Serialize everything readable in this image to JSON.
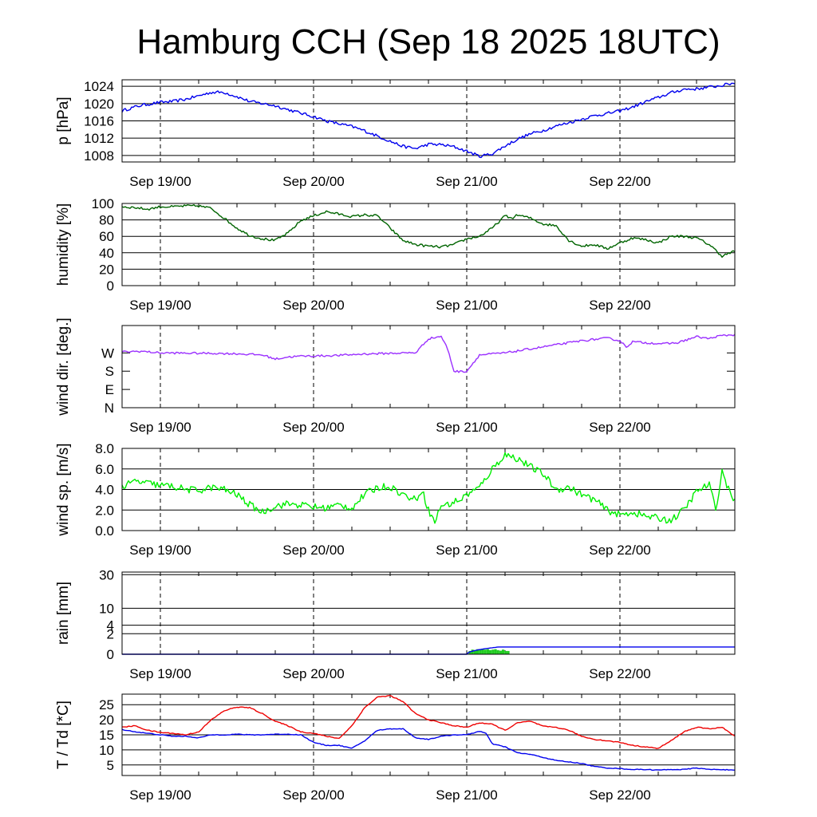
{
  "title": "Hamburg CCH (Sep 18 2025 18UTC)",
  "colors": {
    "pressure": "#0000ee",
    "humidity": "#006400",
    "wind_dir": "#9b30ff",
    "wind_speed": "#00ee00",
    "rain_total": "#0000ee",
    "rain_rate": "#22cc22",
    "temperature": "#ee0000",
    "dewpoint": "#0000ee"
  },
  "chart_data": [
    {
      "type": "line",
      "ylabel": "p [hPa]",
      "xlim": [
        -6,
        90
      ],
      "ylim": [
        1006.5,
        1025.5
      ],
      "x_ticks": [
        0,
        24,
        48,
        72
      ],
      "x_tick_labels": [
        "Sep 19/00",
        "Sep 20/00",
        "Sep 21/00",
        "Sep 22/00"
      ],
      "y_ticks": [
        1008,
        1012,
        1016,
        1020,
        1024
      ],
      "y_tick_labels": [
        "1008",
        "1012",
        "1016",
        "1020",
        "1024"
      ],
      "grid": true,
      "series": [
        {
          "x": [
            -6,
            -5,
            -3,
            0,
            2,
            4,
            6,
            8,
            10,
            12,
            14,
            16,
            18,
            20,
            22,
            24,
            26,
            28,
            30,
            32,
            34,
            36,
            38,
            40,
            42,
            44,
            46,
            48,
            50,
            52,
            54,
            56,
            58,
            60,
            62,
            64,
            66,
            68,
            70,
            72,
            74,
            76,
            78,
            80,
            82,
            84,
            86,
            88,
            90
          ],
          "y": [
            1018.3,
            1018.8,
            1019.6,
            1020.3,
            1020.5,
            1021.0,
            1021.8,
            1022.6,
            1022.6,
            1021.6,
            1020.5,
            1020.0,
            1019.5,
            1018.6,
            1017.8,
            1017.0,
            1016.0,
            1015.3,
            1014.7,
            1013.7,
            1012.5,
            1011.3,
            1010.1,
            1009.6,
            1010.6,
            1010.5,
            1010.0,
            1009.0,
            1007.8,
            1008.4,
            1010.2,
            1011.8,
            1013.0,
            1013.8,
            1014.8,
            1015.6,
            1016.4,
            1017.2,
            1017.7,
            1018.3,
            1019.2,
            1020.4,
            1021.4,
            1022.5,
            1023.3,
            1023.4,
            1023.8,
            1024.2,
            1024.8
          ],
          "jitter": 0.35
        }
      ]
    },
    {
      "type": "line",
      "ylabel": "humidity [%]",
      "xlim": [
        -6,
        90
      ],
      "ylim": [
        0,
        100
      ],
      "x_ticks": [
        0,
        24,
        48,
        72
      ],
      "x_tick_labels": [
        "Sep 19/00",
        "Sep 20/00",
        "Sep 21/00",
        "Sep 22/00"
      ],
      "y_ticks": [
        0,
        20,
        40,
        60,
        80,
        100
      ],
      "y_tick_labels": [
        "0",
        "20",
        "40",
        "60",
        "80",
        "100"
      ],
      "grid": true,
      "series": [
        {
          "x": [
            -6,
            -4,
            -2,
            0,
            2,
            4,
            6,
            8,
            10,
            12,
            14,
            16,
            18,
            20,
            22,
            24,
            26,
            28,
            30,
            32,
            34,
            36,
            38,
            40,
            42,
            44,
            46,
            48,
            50,
            52,
            54,
            55,
            56,
            58,
            60,
            62,
            64,
            66,
            68,
            70,
            72,
            74,
            76,
            78,
            80,
            82,
            84,
            86,
            88,
            90
          ],
          "y": [
            96,
            95,
            93,
            96,
            96,
            97,
            97,
            94,
            82,
            70,
            61,
            57,
            55,
            64,
            79,
            85,
            90,
            87,
            84,
            86,
            85,
            70,
            55,
            50,
            48,
            47,
            50,
            57,
            60,
            70,
            85,
            82,
            86,
            82,
            75,
            73,
            55,
            48,
            50,
            45,
            52,
            58,
            56,
            52,
            60,
            60,
            58,
            50,
            36,
            42
          ],
          "jitter": 1.5
        }
      ]
    },
    {
      "type": "line",
      "ylabel": "wind dir. [deg.]",
      "xlim": [
        -6,
        90
      ],
      "ylim": [
        0,
        405
      ],
      "x_ticks": [
        0,
        24,
        48,
        72
      ],
      "x_tick_labels": [
        "Sep 19/00",
        "Sep 20/00",
        "Sep 21/00",
        "Sep 22/00"
      ],
      "y_ticks": [
        0,
        90,
        180,
        270
      ],
      "y_tick_labels": [
        "N",
        "E",
        "S",
        "W"
      ],
      "grid": false,
      "series": [
        {
          "x": [
            -6,
            -3,
            0,
            4,
            8,
            12,
            16,
            18,
            20,
            22,
            24,
            28,
            32,
            36,
            40,
            42,
            44,
            45,
            46,
            47,
            48,
            50,
            52,
            54,
            58,
            62,
            66,
            70,
            72,
            73,
            74,
            76,
            79,
            81,
            84,
            86,
            87,
            88,
            90
          ],
          "y": [
            275,
            278,
            270,
            269,
            268,
            266,
            260,
            240,
            250,
            254,
            255,
            258,
            265,
            268,
            271,
            340,
            352,
            290,
            180,
            178,
            180,
            260,
            265,
            270,
            290,
            310,
            330,
            343,
            330,
            300,
            325,
            320,
            315,
            320,
            350,
            340,
            350,
            355,
            360
          ],
          "jitter": 5
        }
      ]
    },
    {
      "type": "line",
      "ylabel": "wind sp. [m/s]",
      "xlim": [
        -6,
        90
      ],
      "ylim": [
        0,
        8
      ],
      "x_ticks": [
        0,
        24,
        48,
        72
      ],
      "x_tick_labels": [
        "Sep 19/00",
        "Sep 20/00",
        "Sep 21/00",
        "Sep 22/00"
      ],
      "y_ticks": [
        0,
        2,
        4,
        6,
        8
      ],
      "y_tick_labels": [
        "0.0",
        "2.0",
        "4.0",
        "6.0",
        "8.0"
      ],
      "grid": true,
      "series": [
        {
          "x": [
            -6,
            -4,
            -2,
            0,
            2,
            4,
            6,
            8,
            10,
            12,
            14,
            16,
            18,
            20,
            22,
            24,
            26,
            28,
            30,
            32,
            34,
            36,
            38,
            40,
            41,
            42,
            43,
            44,
            45,
            46,
            47,
            48,
            50,
            52,
            54,
            56,
            58,
            60,
            62,
            64,
            66,
            68,
            70,
            72,
            74,
            76,
            78,
            80,
            82,
            84,
            86,
            87,
            88,
            89,
            90
          ],
          "y": [
            4.2,
            4.8,
            4.6,
            4.4,
            4.3,
            4.0,
            3.9,
            4.2,
            4.0,
            3.5,
            2.5,
            1.8,
            2.4,
            2.6,
            2.5,
            2.3,
            2.2,
            2.5,
            2.2,
            3.5,
            4.2,
            4.3,
            3.5,
            3.0,
            4.0,
            2.0,
            0.8,
            2.5,
            2.5,
            2.8,
            3.0,
            3.5,
            4.2,
            6.0,
            7.4,
            7.0,
            6.2,
            5.5,
            4.0,
            4.2,
            3.5,
            3.0,
            2.0,
            1.5,
            1.8,
            1.4,
            1.2,
            1.0,
            2.0,
            3.8,
            4.5,
            2.0,
            5.8,
            4.0,
            3.0
          ],
          "jitter": 0.35
        }
      ]
    },
    {
      "type": "line",
      "ylabel": "rain [mm]",
      "xlim": [
        -6,
        90
      ],
      "ylim": [
        0,
        32
      ],
      "scale": "sqrt",
      "x_ticks": [
        0,
        24,
        48,
        72
      ],
      "x_tick_labels": [
        "Sep 19/00",
        "Sep 20/00",
        "Sep 21/00",
        "Sep 22/00"
      ],
      "y_ticks": [
        0,
        2,
        4,
        10,
        30
      ],
      "y_tick_labels": [
        "0",
        "2",
        "4",
        "10",
        "30"
      ],
      "grid": true,
      "series": [
        {
          "x": [
            -6,
            48,
            49,
            50,
            51,
            52,
            53,
            90
          ],
          "y": [
            0,
            0,
            0.05,
            0.1,
            0.15,
            0.2,
            0.25,
            0.25
          ],
          "jitter": 0
        }
      ],
      "bars": {
        "x": [
          48.3,
          48.7,
          49.1,
          49.5,
          49.9,
          50.3,
          50.7,
          51.1,
          51.5,
          51.9,
          52.3,
          52.7,
          53.1,
          53.5,
          53.9,
          54.3
        ],
        "y": [
          0.05,
          0.1,
          0.08,
          0.12,
          0.1,
          0.15,
          0.1,
          0.12,
          0.08,
          0.1,
          0.12,
          0.08,
          0.06,
          0.1,
          0.05,
          0.05
        ],
        "width": 0.4
      }
    },
    {
      "type": "line",
      "ylabel": "T / Td [*C]",
      "xlim": [
        -6,
        90
      ],
      "ylim": [
        1.5,
        28.5
      ],
      "x_ticks": [
        0,
        24,
        48,
        72
      ],
      "x_tick_labels": [
        "Sep 19/00",
        "Sep 20/00",
        "Sep 21/00",
        "Sep 22/00"
      ],
      "y_ticks": [
        5,
        10,
        15,
        20,
        25
      ],
      "y_tick_labels": [
        "5",
        "10",
        "15",
        "20",
        "25"
      ],
      "grid": true,
      "series": [
        {
          "name": "T",
          "x": [
            -6,
            -4,
            -2,
            0,
            2,
            4,
            6,
            8,
            10,
            12,
            14,
            16,
            18,
            20,
            22,
            24,
            26,
            28,
            30,
            32,
            34,
            36,
            38,
            40,
            42,
            44,
            46,
            48,
            50,
            52,
            54,
            56,
            58,
            60,
            62,
            64,
            66,
            68,
            70,
            72,
            74,
            76,
            78,
            80,
            82,
            84,
            86,
            88,
            90
          ],
          "y": [
            17.5,
            18.0,
            16.5,
            15.8,
            15.5,
            15.0,
            16.0,
            20.0,
            23.0,
            24.2,
            24.0,
            22.0,
            19.5,
            18.0,
            16.0,
            15.5,
            14.5,
            13.8,
            18.0,
            24.0,
            27.5,
            28.0,
            26.0,
            22.0,
            20.0,
            19.0,
            18.0,
            17.5,
            19.0,
            18.5,
            16.5,
            19.0,
            19.5,
            17.8,
            17.5,
            16.5,
            14.5,
            13.5,
            13.0,
            12.5,
            11.5,
            11.0,
            10.5,
            13.0,
            16.0,
            17.5,
            17.0,
            17.5,
            14.5
          ],
          "jitter": 0.15
        },
        {
          "name": "Td",
          "x": [
            -6,
            -4,
            -2,
            0,
            2,
            4,
            6,
            8,
            10,
            12,
            14,
            16,
            18,
            20,
            22,
            24,
            26,
            28,
            30,
            32,
            34,
            36,
            38,
            40,
            42,
            44,
            46,
            48,
            50,
            51,
            52,
            54,
            56,
            58,
            60,
            62,
            64,
            66,
            68,
            70,
            72,
            74,
            76,
            78,
            80,
            82,
            84,
            86,
            88,
            90
          ],
          "y": [
            16.8,
            16.0,
            15.5,
            15.0,
            14.5,
            14.5,
            14.0,
            15.0,
            15.0,
            15.2,
            15.0,
            15.0,
            15.2,
            15.2,
            15.0,
            12.5,
            11.5,
            11.5,
            10.5,
            13.0,
            16.5,
            17.0,
            17.0,
            14.0,
            13.5,
            14.5,
            15.0,
            15.0,
            16.2,
            15.5,
            12.0,
            11.0,
            9.0,
            8.5,
            7.5,
            6.5,
            6.0,
            5.5,
            4.5,
            4.0,
            3.8,
            3.5,
            3.5,
            3.3,
            3.5,
            3.5,
            4.0,
            3.5,
            3.5,
            3.2
          ],
          "jitter": 0.12
        }
      ]
    }
  ]
}
